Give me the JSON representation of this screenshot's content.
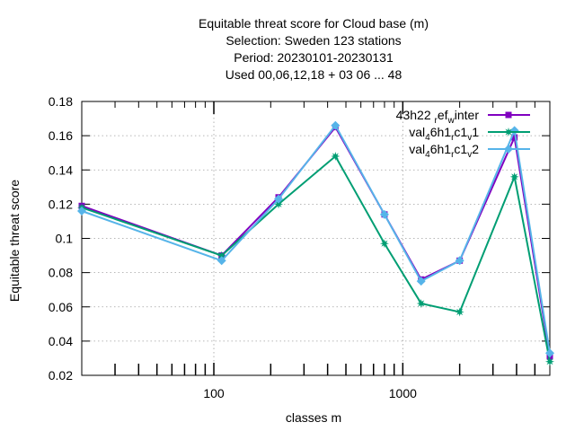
{
  "chart_data": {
    "type": "line",
    "title_lines": [
      "Equitable threat score  for Cloud base (m)",
      "Selection: Sweden     123 stations",
      "Period: 20230101-20230131",
      "Used  00,06,12,18  + 03 06 ... 48"
    ],
    "xlabel": "classes m",
    "ylabel": "Equitable threat score",
    "x_scale": "log",
    "xlim": [
      20,
      6000
    ],
    "ylim": [
      0.02,
      0.18
    ],
    "y_ticks": [
      0.02,
      0.04,
      0.06,
      0.08,
      0.1,
      0.12,
      0.14,
      0.16,
      0.18
    ],
    "y_tick_labels": [
      "0.02",
      "0.04",
      "0.06",
      "0.08",
      "0.1",
      "0.12",
      "0.14",
      "0.16",
      "0.18"
    ],
    "x_major_ticks": [
      100,
      1000
    ],
    "x_major_tick_labels": [
      "100",
      "1000"
    ],
    "x_minor_ticks": [
      30,
      40,
      50,
      60,
      70,
      80,
      90,
      200,
      300,
      400,
      500,
      600,
      700,
      800,
      900,
      2000,
      3000,
      4000,
      5000
    ],
    "grid": true,
    "legend_position": "top-right",
    "x": [
      20,
      110,
      220,
      440,
      800,
      1250,
      2000,
      3900,
      6000
    ],
    "series": [
      {
        "name": "43h22",
        "name_parts": [
          [
            "43h22 ",
            "n"
          ],
          [
            "r",
            "sub"
          ],
          [
            "ef",
            "n"
          ],
          [
            "w",
            "sub"
          ],
          [
            "inter",
            "n"
          ]
        ],
        "color": "#8000c0",
        "marker": "square",
        "values": [
          0.119,
          0.09,
          0.124,
          0.165,
          0.114,
          0.076,
          0.087,
          0.159,
          0.031
        ]
      },
      {
        "name": "val46h1",
        "name_parts": [
          [
            "val",
            "n"
          ],
          [
            "4",
            "sub"
          ],
          [
            "6h1",
            "n"
          ],
          [
            "r",
            "sub"
          ],
          [
            "c1",
            "n"
          ],
          [
            "v",
            "sub"
          ],
          [
            "1",
            "n"
          ]
        ],
        "color": "#009e73",
        "marker": "star",
        "values": [
          0.118,
          0.09,
          0.12,
          0.148,
          0.097,
          0.062,
          0.057,
          0.136,
          0.028
        ]
      },
      {
        "name": "val46h1",
        "name_parts": [
          [
            "val",
            "n"
          ],
          [
            "4",
            "sub"
          ],
          [
            "6h1",
            "n"
          ],
          [
            "r",
            "sub"
          ],
          [
            "c1",
            "n"
          ],
          [
            "v",
            "sub"
          ],
          [
            "2",
            "n"
          ]
        ],
        "color": "#56b4e9",
        "marker": "diamond",
        "values": [
          0.116,
          0.087,
          0.123,
          0.166,
          0.114,
          0.075,
          0.087,
          0.163,
          0.033
        ]
      }
    ]
  }
}
